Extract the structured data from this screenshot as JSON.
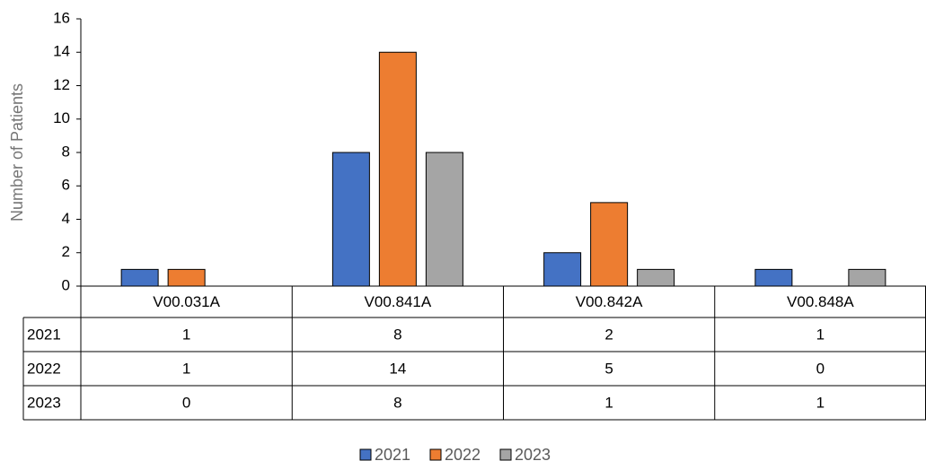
{
  "chart_data": {
    "type": "bar",
    "y_label": "Number of Patients",
    "categories": [
      "V00.031A",
      "V00.841A",
      "V00.842A",
      "V00.848A"
    ],
    "series": [
      {
        "name": "2021",
        "color": "#4472c4",
        "values": [
          1,
          8,
          2,
          1
        ]
      },
      {
        "name": "2022",
        "color": "#ed7d31",
        "values": [
          1,
          14,
          5,
          0
        ]
      },
      {
        "name": "2023",
        "color": "#a5a5a5",
        "values": [
          0,
          8,
          1,
          1
        ]
      }
    ],
    "ylim": [
      0,
      16
    ],
    "yticks": [
      0,
      2,
      4,
      6,
      8,
      10,
      12,
      14,
      16
    ],
    "data_table": true
  }
}
